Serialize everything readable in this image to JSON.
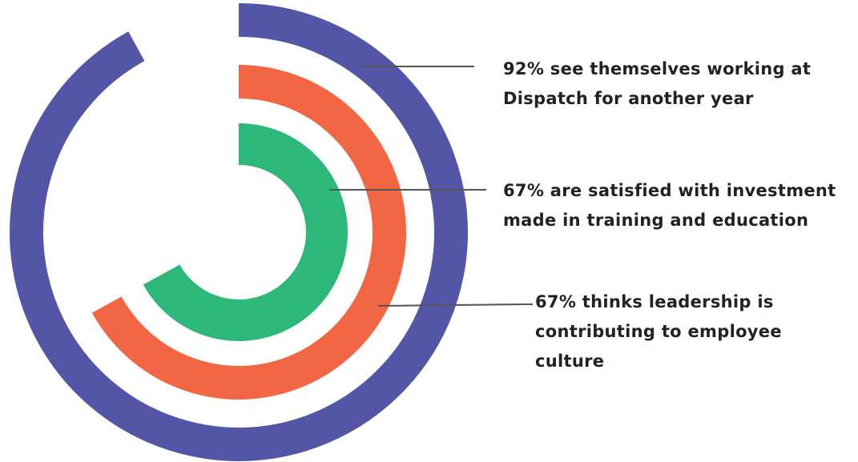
{
  "chart_data": {
    "type": "radial-bar",
    "max": 100,
    "series": [
      {
        "value": 92,
        "color": "#5356a6",
        "label_lines": [
          "92% see themselves working at",
          "Dispatch for another year"
        ]
      },
      {
        "value": 67,
        "color": "#f26644",
        "label_lines": [
          "67% are satisfied with investment",
          "made in training and education"
        ]
      },
      {
        "value": 67,
        "color": "#2db87a",
        "label_lines": [
          "67% thinks leadership is",
          "contributing to employee",
          "culture"
        ]
      }
    ],
    "leader_line_color": "#555555"
  }
}
